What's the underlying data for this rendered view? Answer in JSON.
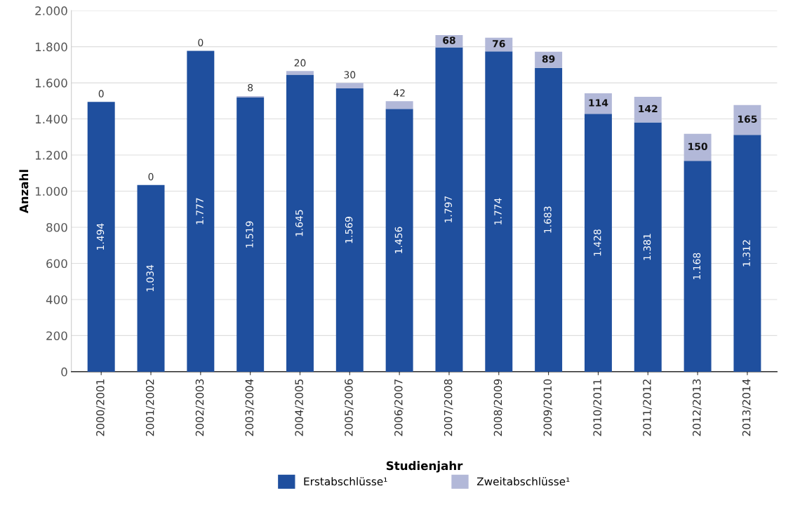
{
  "chart_data": {
    "type": "bar",
    "stacked": true,
    "xlabel": "Studienjahr",
    "ylabel": "Anzahl",
    "categories": [
      "2000/2001",
      "2001/2002",
      "2002/2003",
      "2003/2004",
      "2004/2005",
      "2005/2006",
      "2006/2007",
      "2007/2008",
      "2008/2009",
      "2009/2010",
      "2010/2011",
      "2011/2012",
      "2012/2013",
      "2013/2014"
    ],
    "series": [
      {
        "name": "Erstabschlüsse¹",
        "color": "#1f4f9e",
        "values": [
          1494,
          1034,
          1777,
          1519,
          1645,
          1569,
          1456,
          1797,
          1774,
          1683,
          1428,
          1381,
          1168,
          1312
        ],
        "value_labels": [
          "1.494",
          "1.034",
          "1.777",
          "1.519",
          "1.645",
          "1.569",
          "1.456",
          "1.797",
          "1.774",
          "1.683",
          "1.428",
          "1.381",
          "1.168",
          "1.312"
        ]
      },
      {
        "name": "Zweitabschlüsse¹",
        "color": "#b2b8d8",
        "values": [
          0,
          0,
          0,
          8,
          20,
          30,
          42,
          68,
          76,
          89,
          114,
          142,
          150,
          165
        ],
        "value_labels": [
          "0",
          "0",
          "0",
          "8",
          "20",
          "30",
          "42",
          "68",
          "76",
          "89",
          "114",
          "142",
          "150",
          "165"
        ]
      }
    ],
    "ylim": [
      0,
      2000
    ],
    "yticks": [
      0,
      {
        "value": 200,
        "label": "200"
      },
      {
        "value": 400,
        "label": "400"
      },
      {
        "value": 600,
        "label": "600"
      },
      {
        "value": 800,
        "label": "800"
      },
      {
        "value": 1000,
        "label": "1.000"
      },
      {
        "value": 1200,
        "label": "1.200"
      },
      {
        "value": 1400,
        "label": "1.400"
      },
      {
        "value": 1600,
        "label": "1.600"
      },
      {
        "value": 1800,
        "label": "1.800"
      },
      {
        "value": 2000,
        "label": "2.000"
      }
    ],
    "grid": "y",
    "legend": "bottom"
  }
}
